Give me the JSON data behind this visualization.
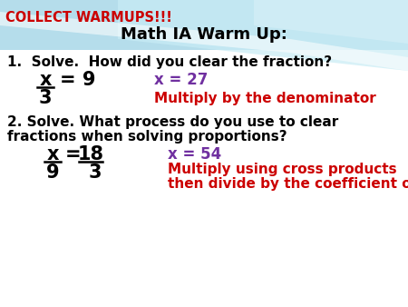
{
  "background_color": "#ffffff",
  "header_color": "#cc0000",
  "header_text": "COLLECT WARMUPS!!!",
  "title_text": "Math IA Warm Up:",
  "title_color": "#000000",
  "q1_text": "1.  Solve.  How did you clear the fraction?",
  "q1_color": "#000000",
  "q1_frac_num": "x",
  "q1_frac_den": "3",
  "q1_eq": "= 9",
  "q1_answer": "x = 27",
  "q1_answer_color": "#7030a0",
  "q1_method": "Multiply by the denominator",
  "q1_method_color": "#cc0000",
  "q2_text1": "2. Solve. What process do you use to clear",
  "q2_text2": "fractions when solving proportions?",
  "q2_color": "#000000",
  "q2_frac_num": "x",
  "q2_frac_den": "9",
  "q2_eq_num": "18",
  "q2_eq_den": "3",
  "q2_answer": "x = 54",
  "q2_answer_color": "#7030a0",
  "q2_method1": "Multiply using cross products",
  "q2_method2": "then divide by the coefficient of x.",
  "q2_method_color": "#cc0000"
}
